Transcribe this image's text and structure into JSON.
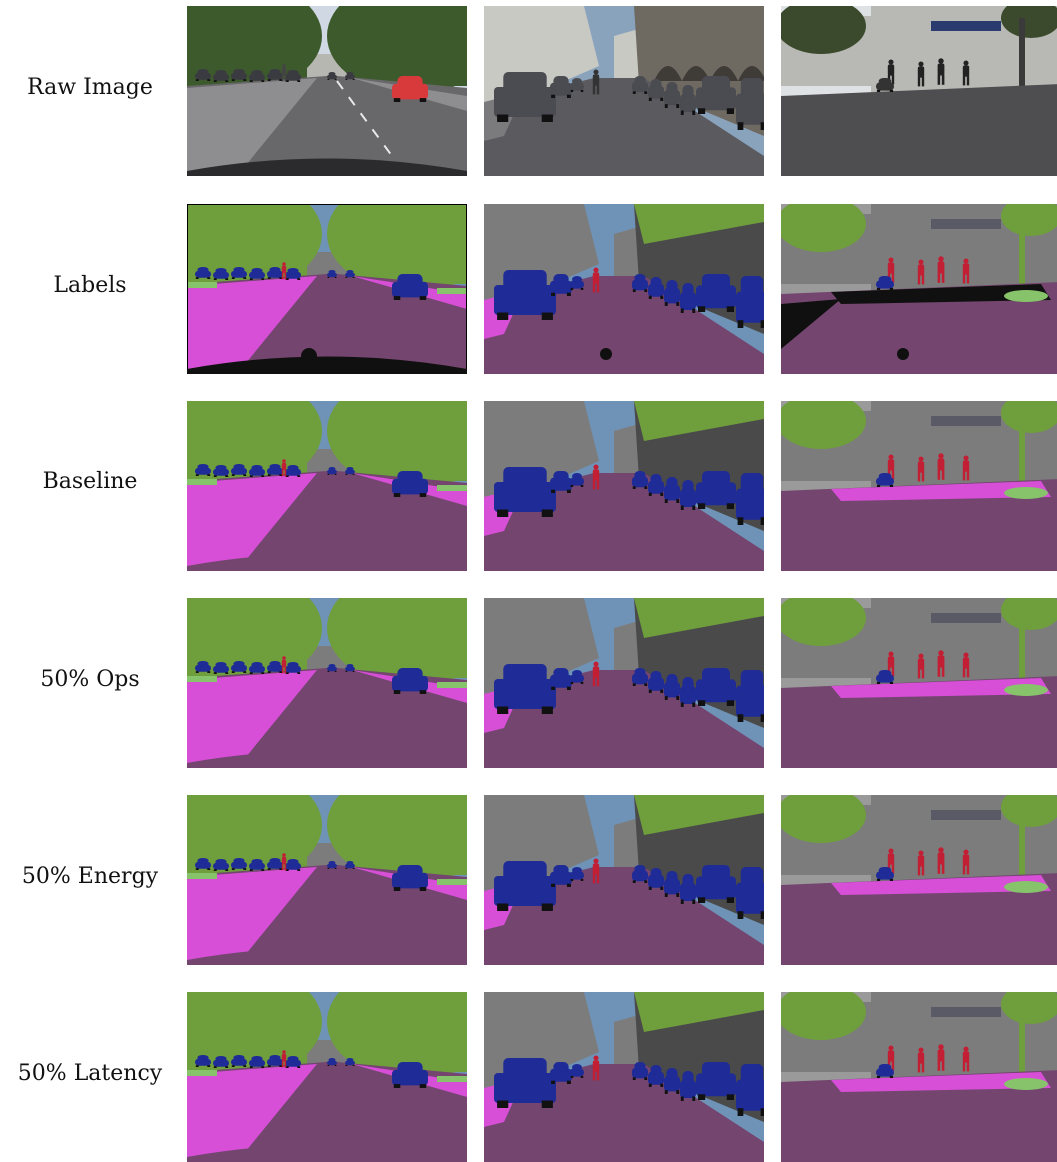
{
  "rows": [
    {
      "label": "Raw Image",
      "kind": "raw"
    },
    {
      "label": "Labels",
      "kind": "label"
    },
    {
      "label": "Baseline",
      "kind": "pred"
    },
    {
      "label": "50% Ops",
      "kind": "pred"
    },
    {
      "label": "50% Energy",
      "kind": "pred"
    },
    {
      "label": "50% Latency",
      "kind": "pred"
    }
  ],
  "scenes": [
    {
      "name": "straight-road-with-red-car"
    },
    {
      "name": "street-with-parked-cars"
    },
    {
      "name": "plaza-with-pedestrians"
    }
  ],
  "palette": {
    "sky": "#6f93b7",
    "vegetation": "#6f9e3c",
    "building": "#7c7c7c",
    "road": "#73456f",
    "sidewalk": "#d64fd6",
    "car": "#1f2b96",
    "person": "#c21f34",
    "terrain": "#86c36a",
    "void": "#101010",
    "raw_sky": "#cfd8e3",
    "raw_tree": "#3d5a2c",
    "raw_building": "#b7b7b2",
    "raw_road": "#68676a",
    "raw_car": "#3a3b40",
    "raw_red_car": "#d83a3c"
  }
}
